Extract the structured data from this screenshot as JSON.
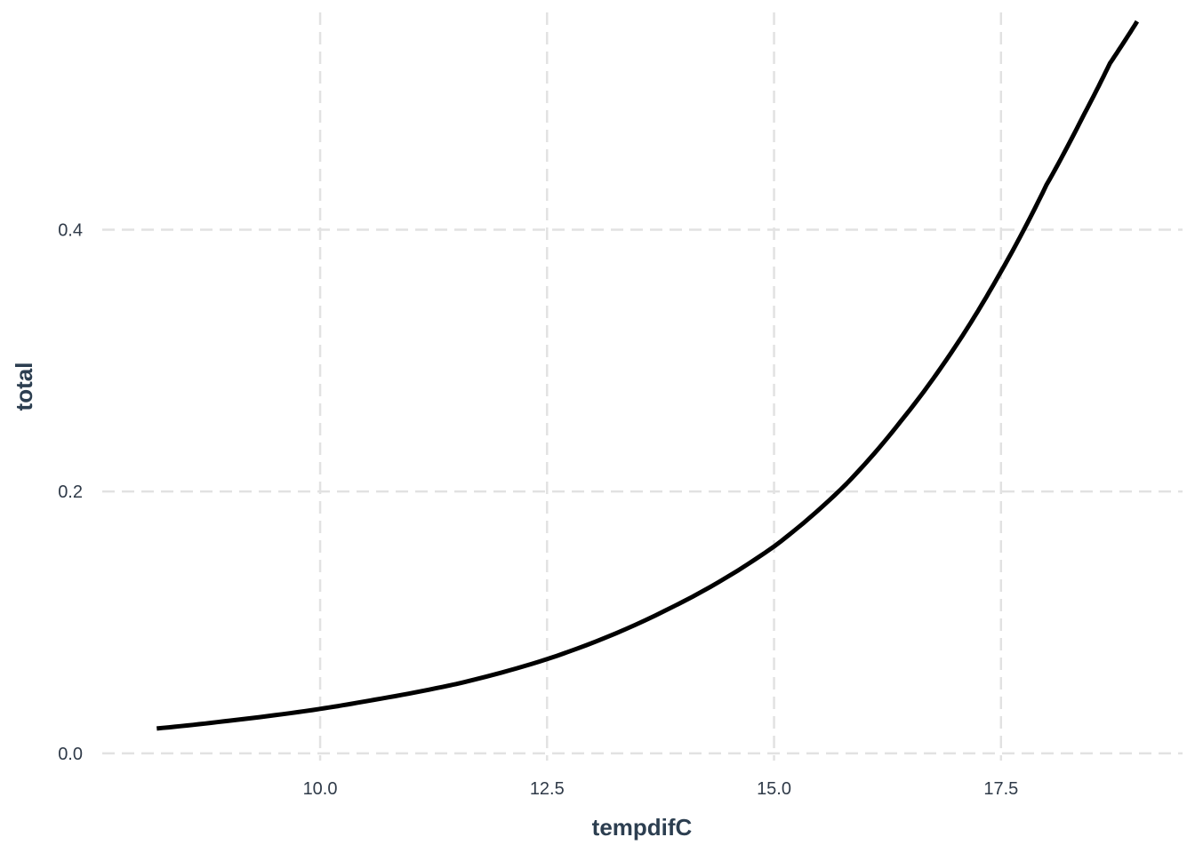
{
  "chart_data": {
    "type": "line",
    "xlabel": "tempdifC",
    "ylabel": "total",
    "x_ticks": [
      10.0,
      12.5,
      15.0,
      17.5
    ],
    "x_tick_labels": [
      "10.0",
      "12.5",
      "15.0",
      "17.5"
    ],
    "y_ticks": [
      0.0,
      0.2,
      0.4
    ],
    "y_tick_labels": [
      "0.0",
      "0.2",
      "0.4"
    ],
    "xlim": [
      7.6,
      19.5
    ],
    "ylim": [
      -0.0055,
      0.5686
    ],
    "grid": true,
    "legend": "none",
    "series": [
      {
        "color": "#000000",
        "x": [
          8.2,
          9.0,
          10.0,
          10.6,
          11.5,
          12.5,
          13.8,
          15.0,
          15.8,
          16.4,
          17.0,
          17.5,
          18.0,
          18.4,
          18.7,
          19.0
        ],
        "y": [
          0.019,
          0.025,
          0.034,
          0.041,
          0.053,
          0.072,
          0.109,
          0.158,
          0.206,
          0.254,
          0.311,
          0.368,
          0.434,
          0.486,
          0.527,
          0.559
        ]
      }
    ]
  }
}
